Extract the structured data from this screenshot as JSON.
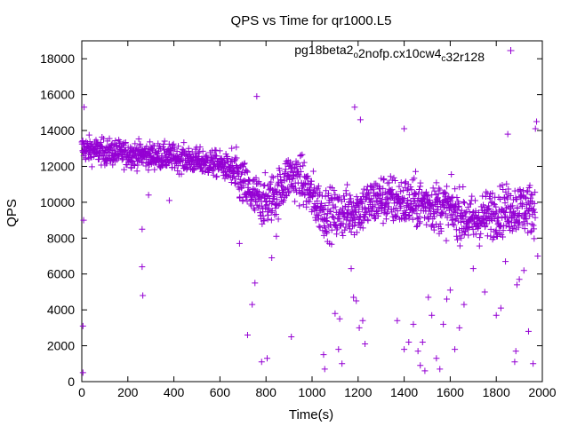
{
  "chart_data": {
    "type": "scatter",
    "title": "QPS vs Time for qr1000.L5",
    "xlabel": "Time(s)",
    "ylabel": "QPS",
    "xlim": [
      0,
      2000
    ],
    "ylim": [
      0,
      19000
    ],
    "x_ticks": [
      0,
      200,
      400,
      600,
      800,
      1000,
      1200,
      1400,
      1600,
      1800,
      2000
    ],
    "y_ticks": [
      0,
      2000,
      4000,
      6000,
      8000,
      10000,
      12000,
      14000,
      16000,
      18000
    ],
    "grid": false,
    "legend_position": "top-right",
    "marker": "+",
    "series": [
      {
        "name_parts": [
          {
            "text": "pg18beta2",
            "sub": false
          },
          {
            "text": "o",
            "sub": true
          },
          {
            "text": "2nofp.cx10cw4",
            "sub": false
          },
          {
            "text": "c",
            "sub": true
          },
          {
            "text": "32r128",
            "sub": false
          }
        ],
        "color": "#9400d3",
        "trend": [
          [
            0,
            13000
          ],
          [
            100,
            12800
          ],
          [
            200,
            12700
          ],
          [
            300,
            12600
          ],
          [
            400,
            12500
          ],
          [
            500,
            12300
          ],
          [
            600,
            12100
          ],
          [
            650,
            11800
          ],
          [
            700,
            11000
          ],
          [
            750,
            10200
          ],
          [
            800,
            10000
          ],
          [
            850,
            10500
          ],
          [
            900,
            11500
          ],
          [
            950,
            11300
          ],
          [
            1000,
            10300
          ],
          [
            1050,
            9500
          ],
          [
            1100,
            9300
          ],
          [
            1200,
            9600
          ],
          [
            1300,
            10200
          ],
          [
            1400,
            10000
          ],
          [
            1500,
            9900
          ],
          [
            1600,
            9600
          ],
          [
            1700,
            8900
          ],
          [
            1800,
            9500
          ],
          [
            1900,
            9700
          ],
          [
            1970,
            9600
          ]
        ],
        "outliers": [
          [
            5,
            3100
          ],
          [
            5,
            500
          ],
          [
            8,
            9000
          ],
          [
            10,
            15300
          ],
          [
            262,
            6400
          ],
          [
            265,
            4800
          ],
          [
            262,
            8500
          ],
          [
            760,
            15900
          ],
          [
            290,
            10400
          ],
          [
            380,
            10100
          ],
          [
            685,
            7700
          ],
          [
            720,
            2600
          ],
          [
            740,
            4300
          ],
          [
            752,
            5500
          ],
          [
            781,
            1100
          ],
          [
            805,
            1300
          ],
          [
            825,
            6900
          ],
          [
            845,
            8100
          ],
          [
            910,
            2500
          ],
          [
            1050,
            1500
          ],
          [
            1055,
            700
          ],
          [
            1115,
            1800
          ],
          [
            1130,
            1000
          ],
          [
            1170,
            6300
          ],
          [
            1180,
            4700
          ],
          [
            1192,
            4500
          ],
          [
            1205,
            3000
          ],
          [
            1220,
            3400
          ],
          [
            1230,
            2100
          ],
          [
            1100,
            3800
          ],
          [
            1120,
            3500
          ],
          [
            1370,
            3400
          ],
          [
            1400,
            1800
          ],
          [
            1420,
            2200
          ],
          [
            1440,
            3200
          ],
          [
            1460,
            1700
          ],
          [
            1470,
            900
          ],
          [
            1480,
            2200
          ],
          [
            1490,
            600
          ],
          [
            1505,
            4700
          ],
          [
            1520,
            3700
          ],
          [
            1540,
            1300
          ],
          [
            1555,
            700
          ],
          [
            1570,
            3200
          ],
          [
            1585,
            4600
          ],
          [
            1600,
            5100
          ],
          [
            1620,
            1800
          ],
          [
            1640,
            3000
          ],
          [
            1660,
            4300
          ],
          [
            1700,
            6300
          ],
          [
            1750,
            5000
          ],
          [
            1800,
            3700
          ],
          [
            1820,
            4100
          ],
          [
            1840,
            6700
          ],
          [
            1880,
            1100
          ],
          [
            1885,
            1700
          ],
          [
            1890,
            5400
          ],
          [
            1900,
            5700
          ],
          [
            1920,
            6200
          ],
          [
            1940,
            2800
          ],
          [
            1960,
            1000
          ],
          [
            1980,
            7000
          ],
          [
            1970,
            14100
          ],
          [
            1975,
            14500
          ],
          [
            1185,
            15300
          ],
          [
            1400,
            14100
          ],
          [
            1850,
            13800
          ],
          [
            1210,
            14600
          ]
        ]
      }
    ]
  }
}
